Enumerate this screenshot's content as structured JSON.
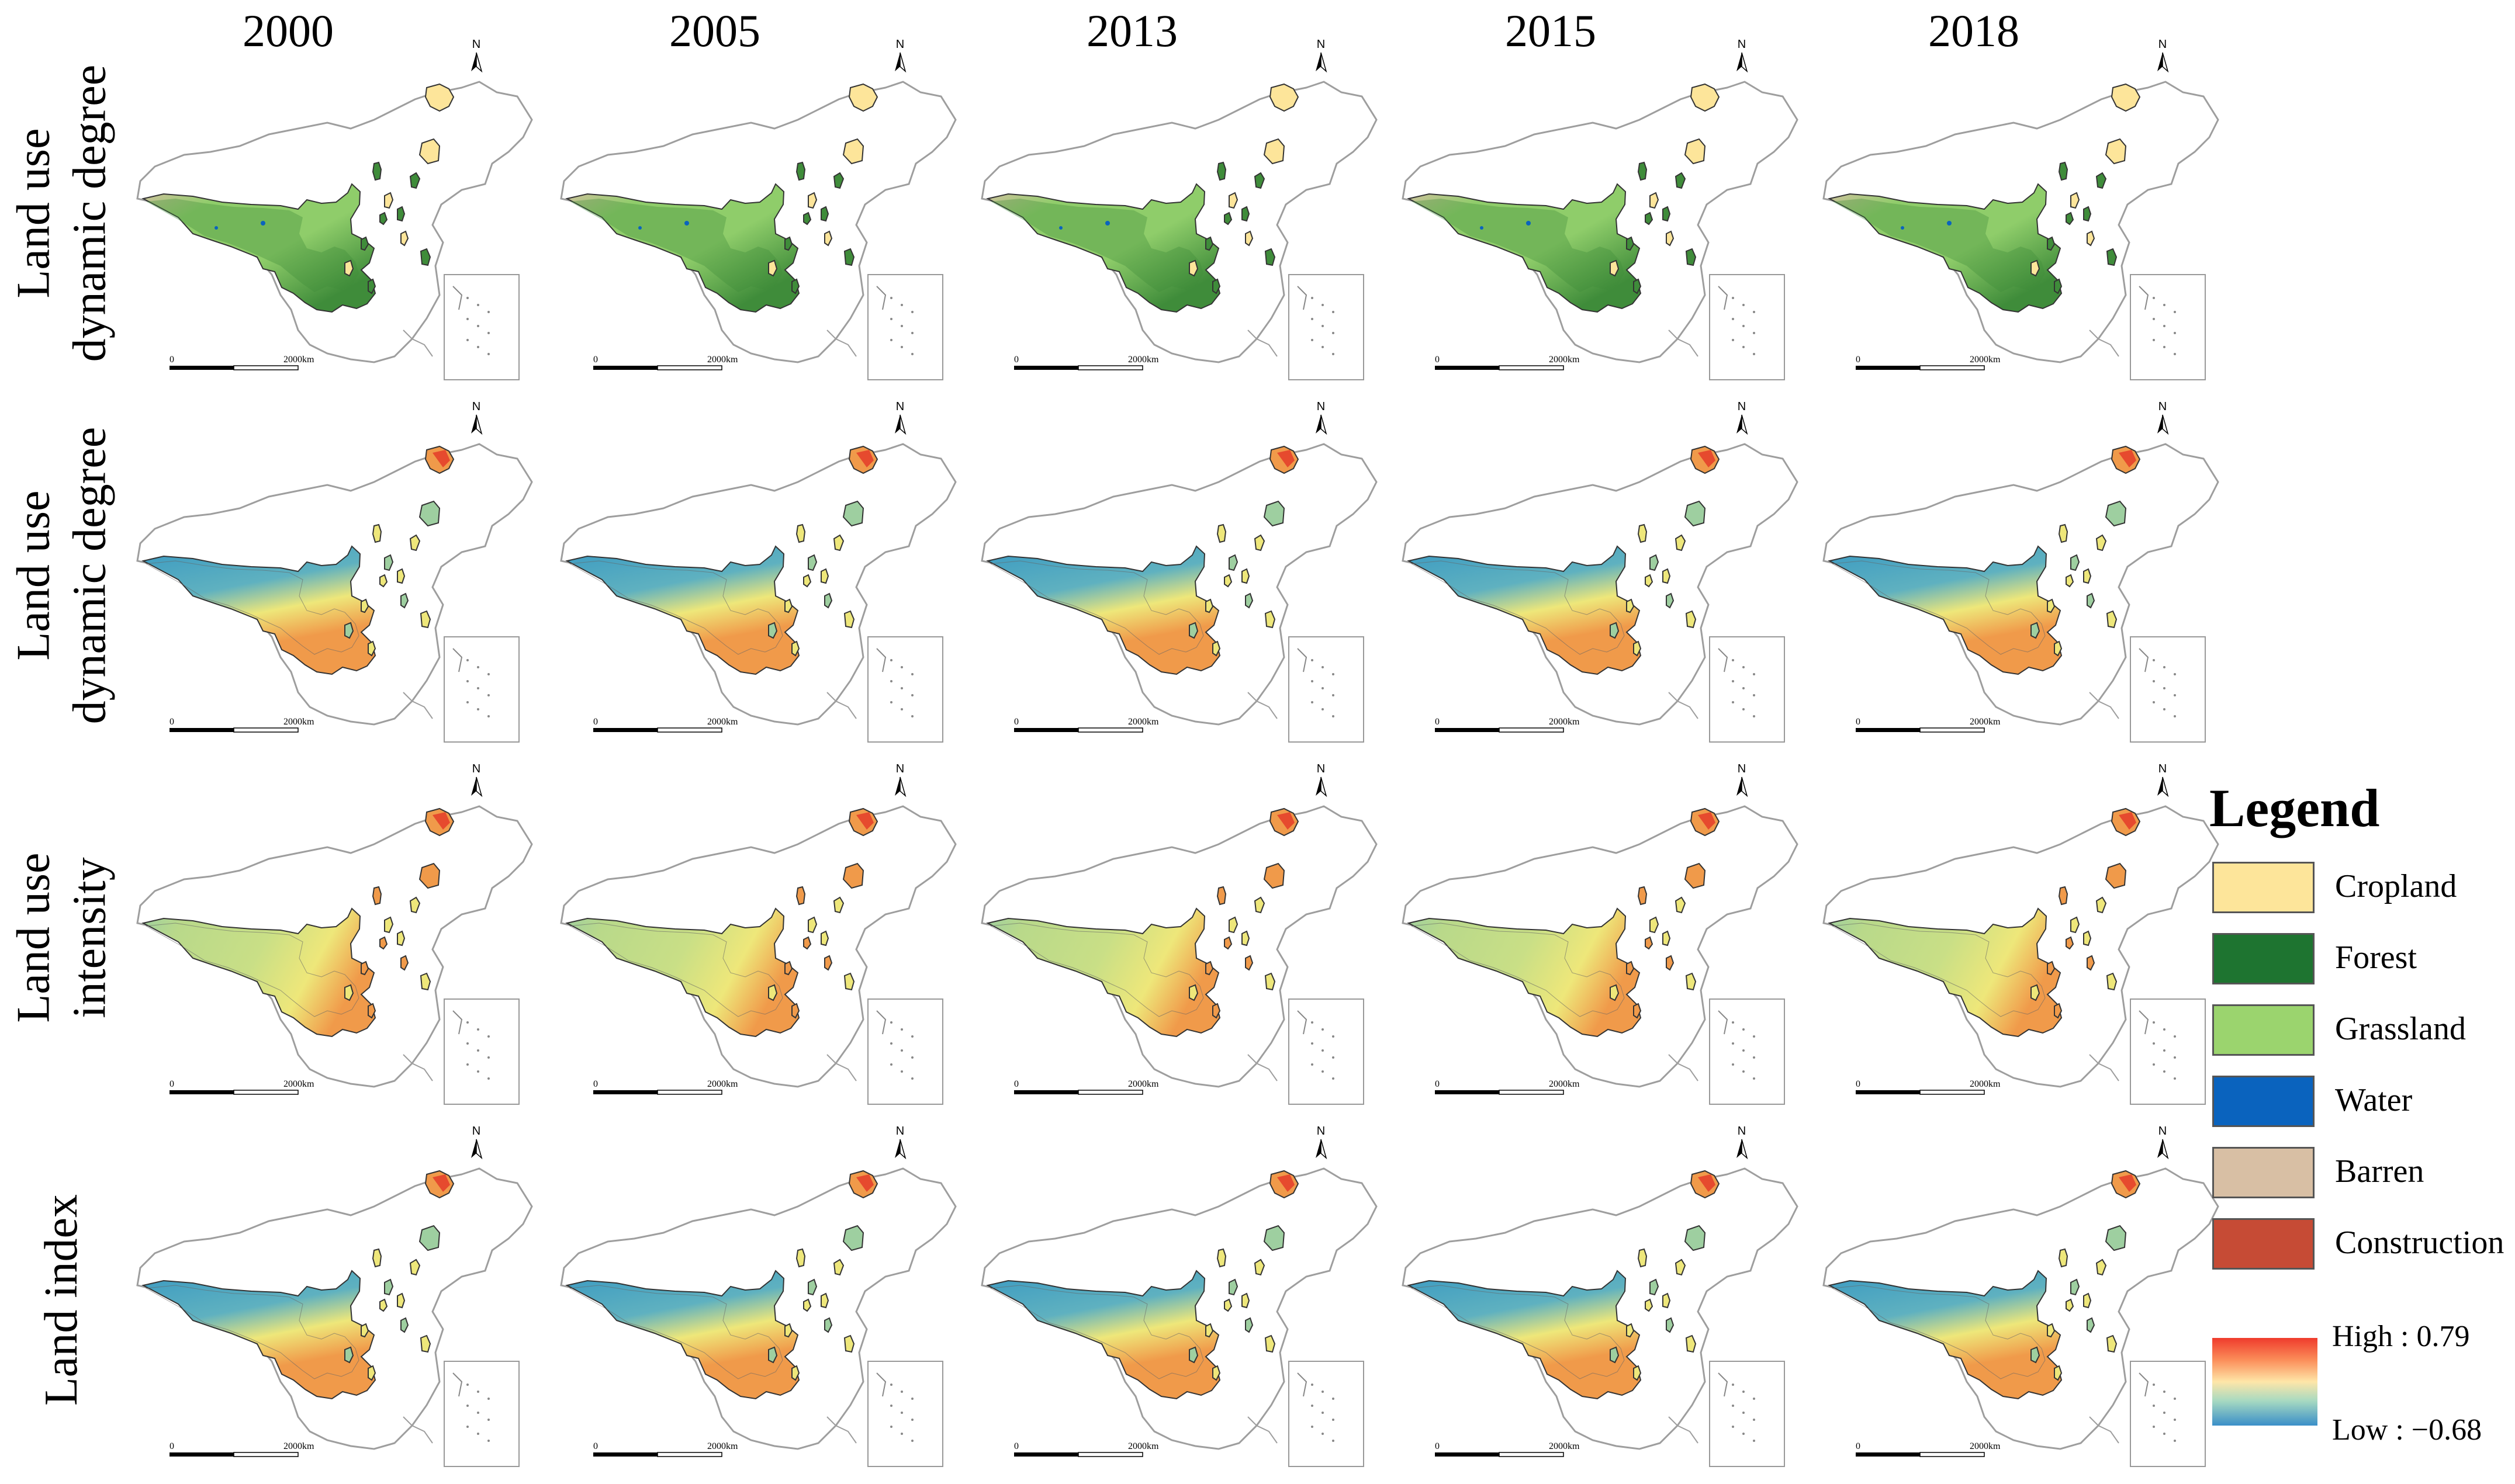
{
  "years": [
    "2000",
    "2005",
    "2013",
    "2015",
    "2018"
  ],
  "rows": [
    {
      "label_line1": "Land use",
      "label_line2": "dynamic degree",
      "scheme": "landcover"
    },
    {
      "label_line1": "Land use",
      "label_line2": "dynamic degree",
      "scheme": "index"
    },
    {
      "label_line1": "Land use",
      "label_line2": "intensity",
      "scheme": "intensity"
    },
    {
      "label_line1": "Land index",
      "label_line2": "",
      "scheme": "index"
    }
  ],
  "map": {
    "north_label": "N",
    "scale_zero": "0",
    "scale_end": "2000km"
  },
  "legend": {
    "title": "Legend",
    "classes": [
      {
        "label": "Cropland",
        "color": "#fde59a"
      },
      {
        "label": "Forest",
        "color": "#1e7430"
      },
      {
        "label": "Grassland",
        "color": "#9bd46e"
      },
      {
        "label": "Water",
        "color": "#0a63be"
      },
      {
        "label": "Barren",
        "color": "#d8bfa4"
      },
      {
        "label": "Construction",
        "color": "#c64b35"
      }
    ],
    "high_label": "High : 0.79",
    "low_label": "Low : −0.68"
  },
  "colors": {
    "outline": "#9e9e9e",
    "landcover": {
      "grass": "#8fcd6a",
      "forest": "#3f8c3a",
      "barren": "#d8bfa4",
      "cropland": "#fde59a",
      "water": "#0a63be"
    },
    "index": {
      "high": "#e64a2e",
      "mid_high": "#f09a4a",
      "mid": "#eee77a",
      "mid_low": "#9ecfa0",
      "low": "#3a9ac2"
    }
  }
}
